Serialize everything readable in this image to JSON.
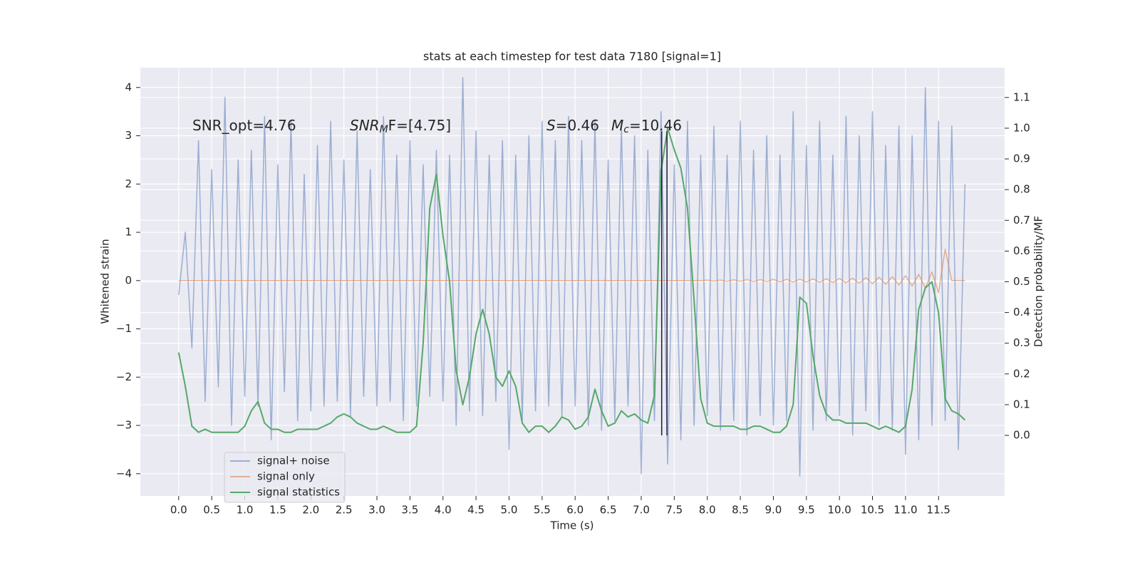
{
  "chart_data": {
    "type": "line",
    "title": "stats at each timestep for test data 7180 [signal=1]",
    "xlabel": "Time (s)",
    "ylabel": "Whitened strain",
    "y2label": "Detection probability/MF",
    "annotations": [
      [
        "SNR_opt=4.76"
      ],
      [
        "SNR",
        "M",
        "F=[4.75]"
      ],
      [
        "S",
        "=0.46"
      ],
      [
        "M",
        "c",
        "=10.46"
      ]
    ],
    "xlim": [
      -0.58,
      12.5
    ],
    "ylim": [
      -4.46,
      4.41
    ],
    "y2lim": [
      -0.197,
      1.197
    ],
    "xticks": [
      {
        "value": 0,
        "label": "0.0"
      },
      0.5,
      {
        "value": 1,
        "label": "1.0"
      },
      1.5,
      {
        "value": 2,
        "label": "2.0"
      },
      2.5,
      {
        "value": 3,
        "label": "3.0"
      },
      3.5,
      {
        "value": 4,
        "label": "4.0"
      },
      4.5,
      {
        "value": 5,
        "label": "5.0"
      },
      5.5,
      {
        "value": 6,
        "label": "6.0"
      },
      6.5,
      {
        "value": 7,
        "label": "7.0"
      },
      7.5,
      {
        "value": 8,
        "label": "8.0"
      },
      8.5,
      {
        "value": 9,
        "label": "9.0"
      },
      9.5,
      {
        "value": 10,
        "label": "10.0"
      },
      10.5,
      {
        "value": 11,
        "label": "11.0"
      },
      11.5
    ],
    "yticks": [
      {
        "value": -4,
        "label": "−4"
      },
      {
        "value": -3,
        "label": "−3"
      },
      {
        "value": -2,
        "label": "−2"
      },
      {
        "value": -1,
        "label": "−1"
      },
      0,
      1,
      2,
      3,
      4
    ],
    "y2ticks": [
      {
        "value": 0,
        "label": "0.0"
      },
      0.1,
      0.2,
      0.3,
      0.4,
      0.5,
      0.6,
      0.7,
      0.8,
      0.9,
      {
        "value": 1,
        "label": "1.0"
      },
      1.1
    ],
    "grid": true,
    "legend_loc": "lower left",
    "x": [
      0.0,
      0.1,
      0.2,
      0.3,
      0.4,
      0.5,
      0.6,
      0.7,
      0.8,
      0.9,
      1.0,
      1.1,
      1.2,
      1.3,
      1.4,
      1.5,
      1.6,
      1.7,
      1.8,
      1.9,
      2.0,
      2.1,
      2.2,
      2.3,
      2.4,
      2.5,
      2.6,
      2.7,
      2.8,
      2.9,
      3.0,
      3.1,
      3.2,
      3.3,
      3.4,
      3.5,
      3.6,
      3.7,
      3.8,
      3.9,
      4.0,
      4.1,
      4.2,
      4.3,
      4.4,
      4.5,
      4.6,
      4.7,
      4.8,
      4.9,
      5.0,
      5.1,
      5.2,
      5.3,
      5.4,
      5.5,
      5.6,
      5.7,
      5.8,
      5.9,
      6.0,
      6.1,
      6.2,
      6.3,
      6.4,
      6.5,
      6.6,
      6.7,
      6.8,
      6.9,
      7.0,
      7.1,
      7.2,
      7.3,
      7.4,
      7.5,
      7.6,
      7.7,
      7.8,
      7.9,
      8.0,
      8.1,
      8.2,
      8.3,
      8.4,
      8.5,
      8.6,
      8.7,
      8.8,
      8.9,
      9.0,
      9.1,
      9.2,
      9.3,
      9.4,
      9.5,
      9.6,
      9.7,
      9.8,
      9.9,
      10.0,
      10.1,
      10.2,
      10.3,
      10.4,
      10.5,
      10.6,
      10.7,
      10.8,
      10.9,
      11.0,
      11.1,
      11.2,
      11.3,
      11.4,
      11.5,
      11.6,
      11.7,
      11.8,
      11.9
    ],
    "series": [
      {
        "name": "signal+ noise",
        "color": "#4c72b0",
        "alpha": 0.5,
        "values": [
          -0.3,
          1.0,
          -1.4,
          2.9,
          -2.5,
          2.3,
          -2.2,
          3.8,
          -3.0,
          2.5,
          -2.4,
          2.7,
          -2.6,
          3.4,
          -3.3,
          2.4,
          -2.3,
          3.3,
          -2.9,
          2.2,
          -2.7,
          2.8,
          -2.6,
          3.3,
          -2.5,
          2.5,
          -2.8,
          3.1,
          -2.4,
          2.3,
          -2.6,
          3.4,
          -2.5,
          2.6,
          -2.9,
          2.9,
          -2.6,
          2.4,
          -2.4,
          2.7,
          -2.5,
          2.6,
          -3.0,
          4.2,
          -2.7,
          3.1,
          -2.8,
          2.6,
          -2.5,
          2.9,
          -3.5,
          2.6,
          -2.9,
          3.0,
          -2.7,
          3.3,
          -2.6,
          2.9,
          -2.8,
          3.4,
          -2.6,
          2.9,
          -3.0,
          3.3,
          -3.1,
          2.5,
          -2.9,
          3.2,
          -2.6,
          3.0,
          -4.0,
          2.7,
          -2.9,
          3.5,
          -3.8,
          2.4,
          -3.3,
          3.3,
          -3.0,
          2.6,
          -2.8,
          3.2,
          -3.1,
          2.6,
          -2.9,
          3.3,
          -3.2,
          2.7,
          -2.8,
          3.0,
          -3.0,
          2.6,
          -2.9,
          3.5,
          -4.05,
          2.8,
          -3.1,
          3.3,
          -2.9,
          2.6,
          -2.8,
          3.4,
          -3.2,
          3.0,
          -2.7,
          3.5,
          -3.0,
          2.8,
          -3.1,
          3.2,
          -3.6,
          3.0,
          -3.3,
          4.0,
          -3.0,
          3.3,
          -2.9,
          3.2,
          -3.5,
          2.0
        ]
      },
      {
        "name": "signal only",
        "color": "#dd8452",
        "alpha": 0.6,
        "values": [
          0,
          0,
          0,
          0,
          0,
          0,
          0,
          0,
          0,
          0,
          0,
          0,
          0,
          0,
          0,
          0,
          0,
          0,
          0,
          0,
          0,
          0,
          0,
          0,
          0,
          0,
          0,
          0,
          0,
          0,
          0,
          0,
          0,
          0,
          0,
          0,
          0,
          0,
          0,
          0,
          0,
          0,
          0,
          0,
          0,
          0,
          0,
          0,
          0,
          0,
          0,
          0,
          0,
          0,
          0,
          0,
          0,
          0,
          0,
          0,
          0,
          0,
          0,
          0,
          0,
          0,
          0,
          0,
          0,
          0,
          0,
          0,
          0,
          0,
          0,
          0,
          0,
          0,
          0,
          0,
          0.01,
          -0.01,
          0.01,
          -0.015,
          0.015,
          -0.015,
          0.02,
          -0.02,
          0.02,
          -0.02,
          0.025,
          -0.025,
          0.025,
          -0.03,
          0.03,
          -0.03,
          0.035,
          -0.035,
          0.04,
          -0.04,
          0.045,
          -0.045,
          0.05,
          -0.055,
          0.06,
          -0.065,
          0.07,
          -0.075,
          0.08,
          -0.09,
          0.1,
          -0.11,
          0.13,
          -0.15,
          0.18,
          -0.25,
          0.65,
          0,
          0,
          0
        ]
      },
      {
        "name": "signal statistics",
        "color": "#55a868",
        "alpha": 1,
        "axis": "y2",
        "values": [
          0.27,
          0.16,
          0.03,
          0.01,
          0.02,
          0.01,
          0.01,
          0.01,
          0.01,
          0.01,
          0.03,
          0.08,
          0.11,
          0.04,
          0.02,
          0.02,
          0.01,
          0.01,
          0.02,
          0.02,
          0.02,
          0.02,
          0.03,
          0.04,
          0.06,
          0.07,
          0.06,
          0.04,
          0.03,
          0.02,
          0.02,
          0.03,
          0.02,
          0.01,
          0.01,
          0.01,
          0.03,
          0.3,
          0.74,
          0.85,
          0.65,
          0.5,
          0.21,
          0.1,
          0.19,
          0.33,
          0.41,
          0.33,
          0.19,
          0.16,
          0.21,
          0.16,
          0.04,
          0.01,
          0.03,
          0.03,
          0.01,
          0.03,
          0.06,
          0.05,
          0.02,
          0.03,
          0.06,
          0.15,
          0.08,
          0.03,
          0.04,
          0.08,
          0.06,
          0.07,
          0.05,
          0.04,
          0.13,
          0.86,
          1.0,
          0.93,
          0.87,
          0.74,
          0.44,
          0.12,
          0.04,
          0.03,
          0.03,
          0.03,
          0.03,
          0.02,
          0.02,
          0.03,
          0.03,
          0.02,
          0.01,
          0.01,
          0.03,
          0.1,
          0.45,
          0.43,
          0.26,
          0.13,
          0.07,
          0.05,
          0.05,
          0.04,
          0.04,
          0.04,
          0.04,
          0.03,
          0.02,
          0.03,
          0.02,
          0.01,
          0.03,
          0.15,
          0.41,
          0.48,
          0.5,
          0.4,
          0.12,
          0.08,
          0.07,
          0.05
        ]
      }
    ],
    "vlines": {
      "x": [
        7.31,
        7.39
      ],
      "ymin": 0,
      "ymax": 0.99,
      "color": "#1c1c3a",
      "axis": "y2"
    }
  }
}
